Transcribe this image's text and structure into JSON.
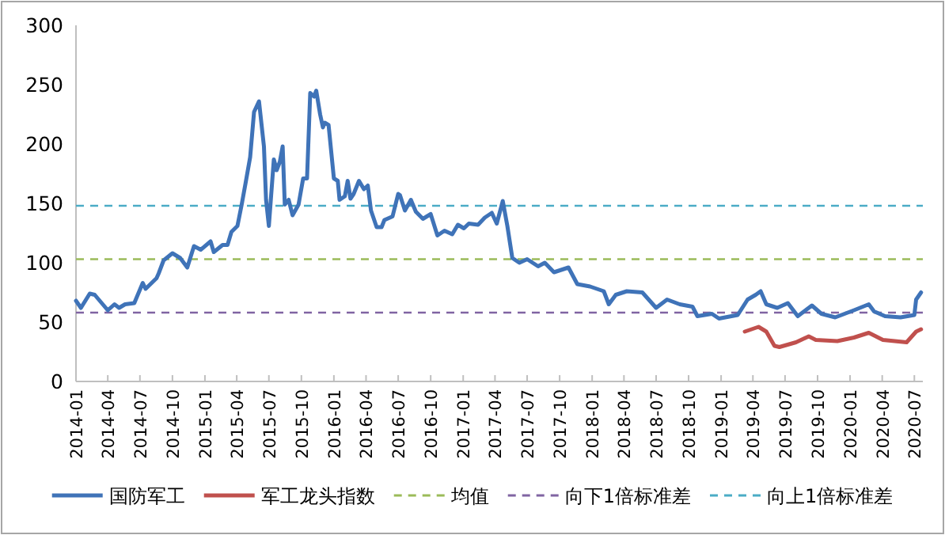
{
  "chart_data": {
    "type": "line",
    "xlim": [
      "2014-01-01",
      "2020-07-25"
    ],
    "xticks": [
      "2014-01",
      "2014-04",
      "2014-07",
      "2014-10",
      "2015-01",
      "2015-04",
      "2015-07",
      "2015-10",
      "2016-01",
      "2016-04",
      "2016-07",
      "2016-10",
      "2017-01",
      "2017-04",
      "2017-07",
      "2017-10",
      "2018-01",
      "2018-04",
      "2018-07",
      "2018-10",
      "2019-01",
      "2019-04",
      "2019-07",
      "2019-10",
      "2020-01",
      "2020-04",
      "2020-07"
    ],
    "ylim": [
      0,
      300
    ],
    "yticks": [
      0,
      50,
      100,
      150,
      200,
      250,
      300
    ],
    "legend": "bottom",
    "line_style": "solid",
    "marker": "none",
    "grid": false,
    "series": [
      {
        "name": "国防军工",
        "color": "#3f73b8",
        "x": [
          "2014-01-01",
          "2014-01-15",
          "2014-02-09",
          "2014-02-23",
          "2014-04-01",
          "2014-04-20",
          "2014-05-03",
          "2014-05-20",
          "2014-06-15",
          "2014-07-09",
          "2014-07-17",
          "2014-08-17",
          "2014-08-23",
          "2014-09-06",
          "2014-10-01",
          "2014-10-23",
          "2014-11-12",
          "2014-12-01",
          "2014-12-20",
          "2015-01-17",
          "2015-01-26",
          "2015-02-20",
          "2015-03-06",
          "2015-03-17",
          "2015-04-03",
          "2015-04-15",
          "2015-04-26",
          "2015-05-09",
          "2015-05-20",
          "2015-06-03",
          "2015-06-17",
          "2015-06-23",
          "2015-07-01",
          "2015-07-15",
          "2015-07-23",
          "2015-08-01",
          "2015-08-09",
          "2015-08-15",
          "2015-08-26",
          "2015-09-06",
          "2015-09-23",
          "2015-10-06",
          "2015-10-17",
          "2015-10-26",
          "2015-11-06",
          "2015-11-12",
          "2015-11-23",
          "2015-12-01",
          "2015-12-06",
          "2015-12-17",
          "2016-01-01",
          "2016-01-12",
          "2016-01-17",
          "2016-02-01",
          "2016-02-09",
          "2016-02-17",
          "2016-02-26",
          "2016-03-12",
          "2016-03-26",
          "2016-04-06",
          "2016-04-15",
          "2016-05-01",
          "2016-05-15",
          "2016-05-23",
          "2016-06-15",
          "2016-07-01",
          "2016-07-06",
          "2016-07-20",
          "2016-08-06",
          "2016-08-20",
          "2016-09-09",
          "2016-10-01",
          "2016-10-20",
          "2016-11-09",
          "2016-12-01",
          "2016-12-17",
          "2017-01-03",
          "2017-01-17",
          "2017-02-12",
          "2017-03-03",
          "2017-03-23",
          "2017-04-06",
          "2017-04-23",
          "2017-05-06",
          "2017-05-20",
          "2017-06-09",
          "2017-07-01",
          "2017-08-01",
          "2017-08-20",
          "2017-09-15",
          "2017-10-26",
          "2017-11-20",
          "2017-12-26",
          "2018-02-03",
          "2018-02-17",
          "2018-03-09",
          "2018-04-09",
          "2018-05-23",
          "2018-07-01",
          "2018-08-01",
          "2018-09-06",
          "2018-10-12",
          "2018-10-26",
          "2018-12-06",
          "2018-12-26",
          "2019-02-17",
          "2019-03-17",
          "2019-04-09",
          "2019-04-23",
          "2019-05-09",
          "2019-06-09",
          "2019-07-09",
          "2019-08-06",
          "2019-09-15",
          "2019-10-12",
          "2019-11-20",
          "2020-01-12",
          "2020-02-23",
          "2020-03-09",
          "2020-04-09",
          "2020-05-23",
          "2020-07-01",
          "2020-07-06",
          "2020-07-20"
        ],
        "values": [
          68,
          62,
          74,
          73,
          60,
          65,
          62,
          65,
          66,
          83,
          78,
          87,
          91,
          102,
          108,
          104,
          96,
          114,
          111,
          118,
          109,
          115,
          115,
          126,
          131,
          149,
          167,
          189,
          227,
          236,
          198,
          153,
          131,
          187,
          178,
          185,
          198,
          149,
          153,
          140,
          149,
          171,
          171,
          243,
          240,
          245,
          225,
          214,
          218,
          216,
          171,
          169,
          153,
          156,
          169,
          154,
          158,
          169,
          162,
          165,
          144,
          130,
          130,
          136,
          139,
          158,
          157,
          144,
          153,
          143,
          137,
          141,
          123,
          127,
          124,
          132,
          129,
          133,
          132,
          138,
          142,
          133,
          152,
          131,
          104,
          100,
          103,
          97,
          100,
          92,
          96,
          82,
          80,
          76,
          65,
          73,
          76,
          75,
          62,
          69,
          65,
          63,
          55,
          57,
          53,
          56,
          69,
          73,
          76,
          65,
          62,
          66,
          55,
          64,
          57,
          54,
          60,
          65,
          59,
          55,
          54,
          56,
          69,
          75
        ]
      },
      {
        "name": "军工龙头指数",
        "color": "#c0504d",
        "x": [
          "2019-03-09",
          "2019-04-17",
          "2019-05-09",
          "2019-06-01",
          "2019-06-15",
          "2019-08-01",
          "2019-09-06",
          "2019-09-26",
          "2019-11-26",
          "2020-01-12",
          "2020-02-23",
          "2020-04-03",
          "2020-06-09",
          "2020-07-06",
          "2020-07-20"
        ],
        "values": [
          42,
          46,
          42,
          30,
          29,
          33,
          38,
          35,
          34,
          37,
          41,
          35,
          33,
          42,
          44
        ]
      }
    ],
    "ref_lines": [
      {
        "axis": "y",
        "value": 103,
        "label": "均值",
        "color": "#9bbb59",
        "line_style": "dashed"
      },
      {
        "axis": "y",
        "value": 58,
        "label": "向下1倍标准差",
        "color": "#8064a2",
        "line_style": "dashed"
      },
      {
        "axis": "y",
        "value": 148,
        "label": "向上1倍标准差",
        "color": "#4bacc6",
        "line_style": "dashed"
      }
    ]
  }
}
